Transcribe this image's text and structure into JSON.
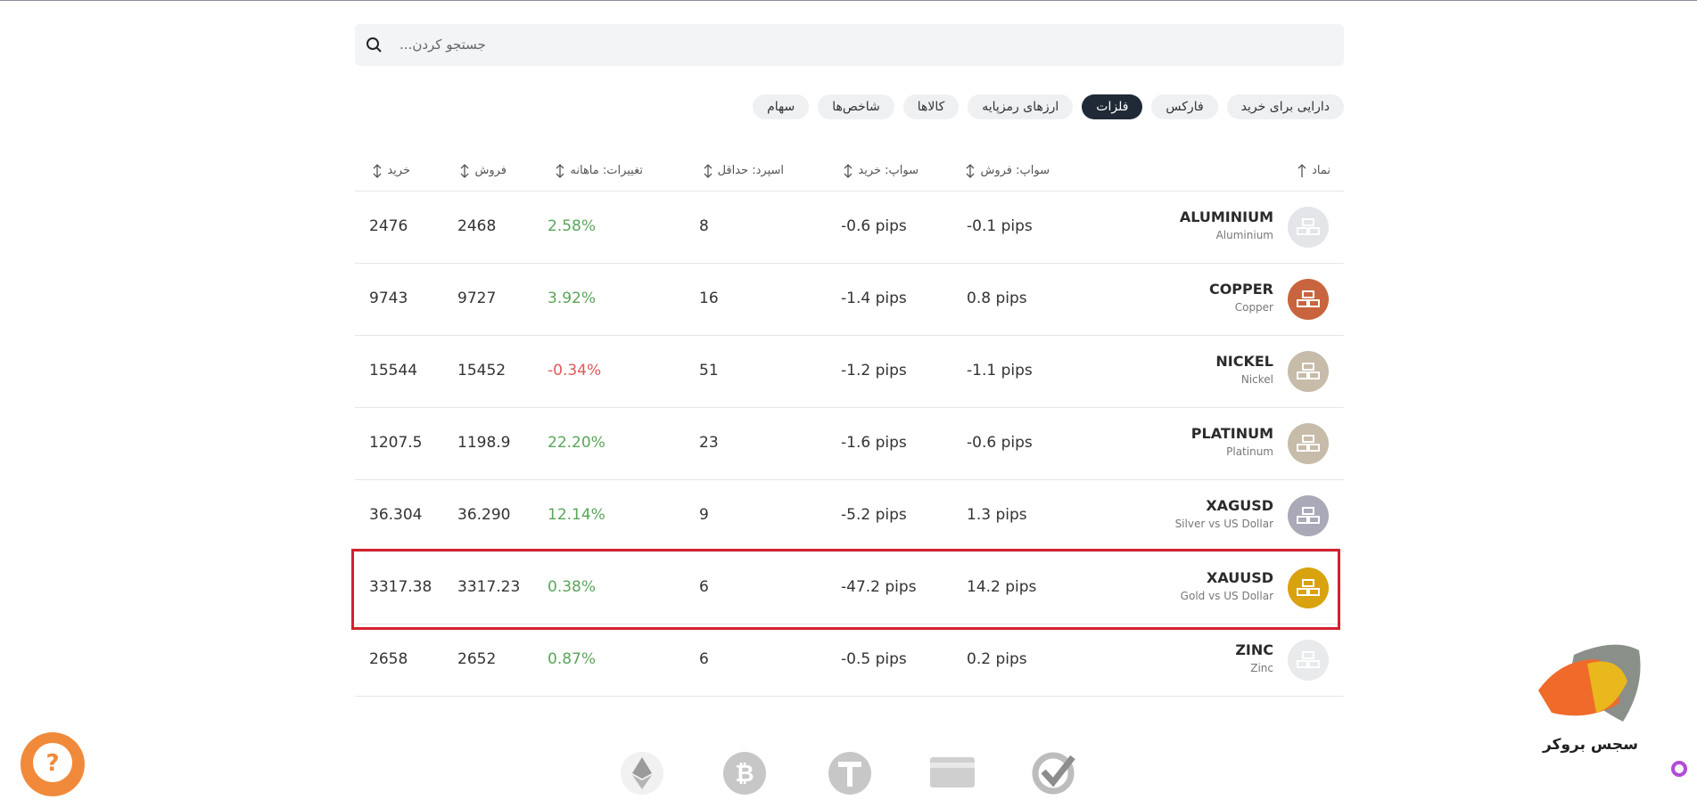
{
  "search": {
    "placeholder": "...جستجو کردن"
  },
  "tabs": {
    "items": [
      "دارایی برای خرید",
      "فارکس",
      "فلزات",
      "ارزهای رمزپایه",
      "کالاها",
      "شاخص‌ها",
      "سهام"
    ],
    "active": 2
  },
  "table": {
    "headers": [
      "نماد",
      "سواپ: فروش",
      "سواپ: خرید",
      "اسپرد: حداقل",
      "تغییرات: ماهانه",
      "فروش",
      "خرید"
    ],
    "rows": [
      {
        "symbol": "ALUMINIUM",
        "name": "Aluminium",
        "swap_sell": "-0.1 pips",
        "swap_buy": "-0.6 pips",
        "spread": "8",
        "change": "2.58%",
        "sell": "2468",
        "buy": "2476",
        "icon_color": "#e3e5e8"
      },
      {
        "symbol": "COPPER",
        "name": "Copper",
        "swap_sell": "0.8 pips",
        "swap_buy": "-1.4 pips",
        "spread": "16",
        "change": "3.92%",
        "sell": "9727",
        "buy": "9743",
        "icon_color": "#c8653e"
      },
      {
        "symbol": "NICKEL",
        "name": "Nickel",
        "swap_sell": "-1.1 pips",
        "swap_buy": "-1.2 pips",
        "spread": "51",
        "change": "-0.34%",
        "sell": "15452",
        "buy": "15544",
        "icon_color": "#c7bba9"
      },
      {
        "symbol": "PLATINUM",
        "name": "Platinum",
        "swap_sell": "-0.6 pips",
        "swap_buy": "-1.6 pips",
        "spread": "23",
        "change": "22.20%",
        "sell": "1198.9",
        "buy": "1207.5",
        "icon_color": "#c7bba9"
      },
      {
        "symbol": "XAGUSD",
        "name": "Silver vs US Dollar",
        "swap_sell": "1.3 pips",
        "swap_buy": "-5.2 pips",
        "spread": "9",
        "change": "12.14%",
        "sell": "36.290",
        "buy": "36.304",
        "icon_color": "#a9a9b8"
      },
      {
        "symbol": "XAUUSD",
        "name": "Gold vs US Dollar",
        "swap_sell": "14.2 pips",
        "swap_buy": "-47.2 pips",
        "spread": "6",
        "change": "0.38%",
        "sell": "3317.23",
        "buy": "3317.38",
        "icon_color": "#d9a20f"
      },
      {
        "symbol": "ZINC",
        "name": "Zinc",
        "swap_sell": "0.2 pips",
        "swap_buy": "-0.5 pips",
        "spread": "6",
        "change": "0.87%",
        "sell": "2652",
        "buy": "2658",
        "icon_color": "#e9eaec"
      }
    ],
    "highlighted_row": 5
  },
  "logo": {
    "text": "سجس بروکر"
  }
}
